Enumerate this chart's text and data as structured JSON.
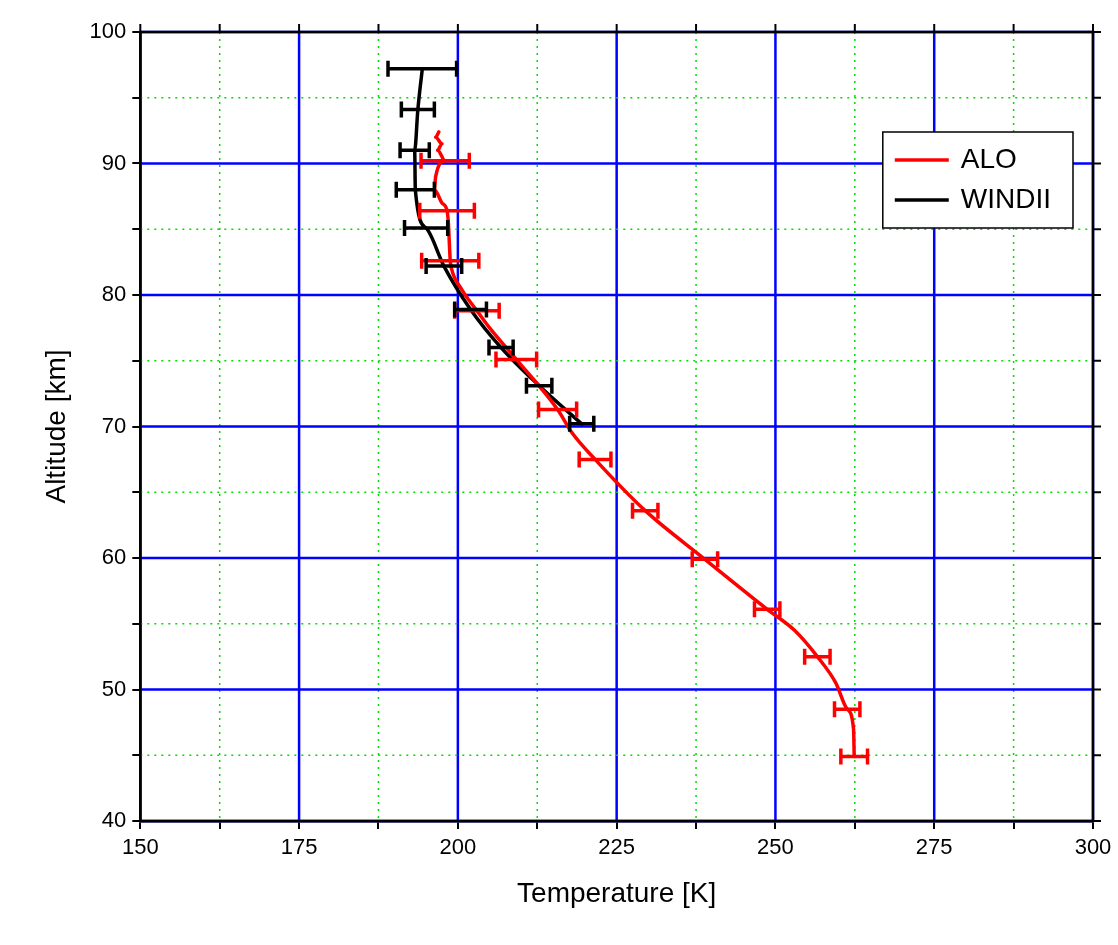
{
  "chart_data": {
    "type": "line",
    "xlabel": "Temperature [K]",
    "ylabel": "Altitude [km]",
    "xlim": [
      150,
      300
    ],
    "ylim": [
      40,
      100
    ],
    "xticks": [
      150,
      {
        "value": 162.5,
        "label": null
      },
      175,
      {
        "value": 187.5,
        "label": null
      },
      200,
      {
        "value": 212.5,
        "label": null
      },
      225,
      {
        "value": 237.5,
        "label": null
      },
      250,
      {
        "value": 262.5,
        "label": null
      },
      275,
      {
        "value": 287.5,
        "label": null
      },
      300
    ],
    "yticks": [
      40,
      {
        "value": 45,
        "label": null
      },
      50,
      {
        "value": 55,
        "label": null
      },
      60,
      {
        "value": 65,
        "label": null
      },
      70,
      {
        "value": 75,
        "label": null
      },
      80,
      {
        "value": 85,
        "label": null
      },
      90,
      {
        "value": 95,
        "label": null
      },
      100
    ],
    "grid": true,
    "legend": "top right",
    "marker": "none",
    "line_style": "solid",
    "series": [
      {
        "name": "ALO",
        "color": "#ff0000",
        "x": [
          262.4,
          262.3,
          261.3,
          259.5,
          256.6,
          253,
          248.7,
          238.9,
          229.5,
          221.6,
          218,
          215.7,
          209.2,
          205,
          203,
          200.5,
          199,
          198.8,
          198.5,
          198.3,
          197.5,
          196.3,
          196.5,
          198,
          196.8,
          197.5,
          196.5,
          197
        ],
        "values": [
          44.9,
          47,
          48.5,
          50.5,
          52.5,
          54.5,
          56.1,
          59.9,
          63.6,
          67.5,
          69.5,
          71.3,
          75.1,
          77.5,
          78.8,
          80.5,
          82,
          82.6,
          85.5,
          86.4,
          87,
          88,
          89,
          90.2,
          91,
          91.5,
          92,
          92.4
        ],
        "xerrors": [
          2.1,
          null,
          2,
          null,
          2,
          null,
          2,
          2,
          2,
          2.5,
          null,
          3,
          3.2,
          null,
          3.5,
          null,
          null,
          4.5,
          null,
          4.3,
          null,
          null,
          null,
          3.8,
          null,
          null,
          null,
          null
        ]
      },
      {
        "name": "WINDII",
        "color": "#000000",
        "x": [
          194.4,
          193.7,
          193.2,
          193.3,
          195,
          197.8,
          202,
          206.8,
          212.8,
          219.5
        ],
        "values": [
          97.2,
          94.1,
          91,
          88,
          85.1,
          82.2,
          78.9,
          76,
          73.1,
          70.2
        ],
        "xerrors": [
          5.4,
          2.6,
          2.3,
          3,
          3.4,
          2.8,
          2.5,
          1.9,
          2,
          1.9
        ]
      }
    ]
  }
}
